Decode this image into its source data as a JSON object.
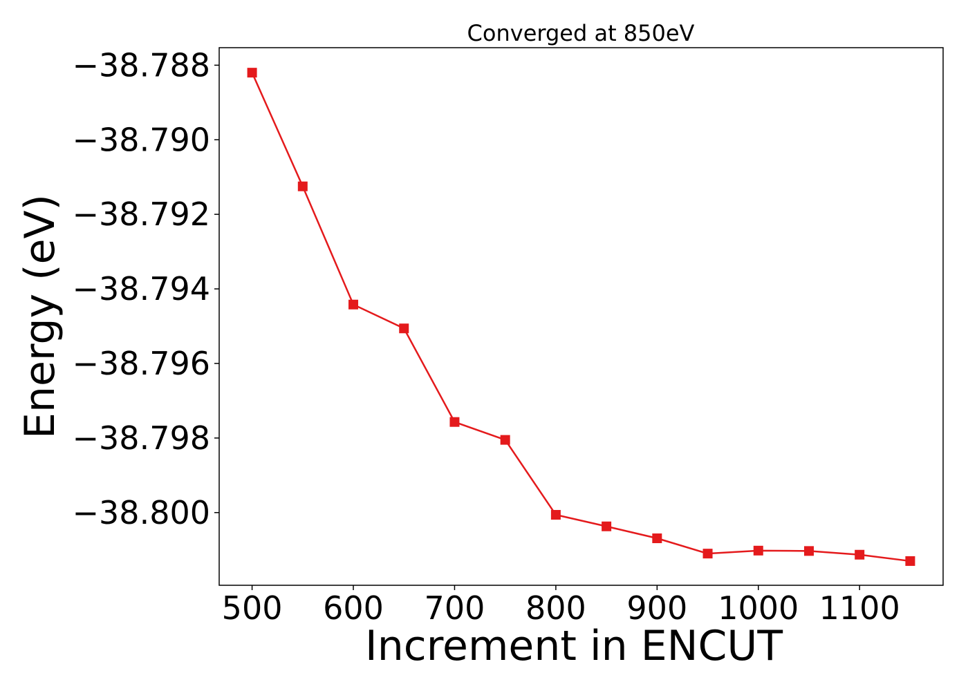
{
  "chart_data": {
    "type": "line",
    "title": "Converged at 850eV",
    "xlabel": "Increment in ENCUT",
    "ylabel": "Energy (eV)",
    "xlim": [
      467.5,
      1182.5
    ],
    "ylim": [
      -38.80195,
      -38.78753
    ],
    "xticks": [
      500,
      600,
      700,
      800,
      900,
      1000,
      1100
    ],
    "yticks": [
      -38.788,
      -38.79,
      -38.792,
      -38.794,
      -38.796,
      -38.798,
      -38.8
    ],
    "ytick_labels": [
      "−38.788",
      "−38.790",
      "−38.792",
      "−38.794",
      "−38.796",
      "−38.798",
      "−38.800"
    ],
    "grid": false,
    "color": "#e41a1c",
    "marker": "square",
    "series": [
      {
        "x": [
          500,
          550,
          600,
          650,
          700,
          750,
          800,
          850,
          900,
          950,
          1000,
          1050,
          1100,
          1150
        ],
        "y": [
          -38.7882,
          -38.79125,
          -38.79442,
          -38.79506,
          -38.79757,
          -38.79805,
          -38.80006,
          -38.80037,
          -38.80069,
          -38.8011,
          -38.80102,
          -38.80103,
          -38.80113,
          -38.8013
        ]
      }
    ]
  }
}
